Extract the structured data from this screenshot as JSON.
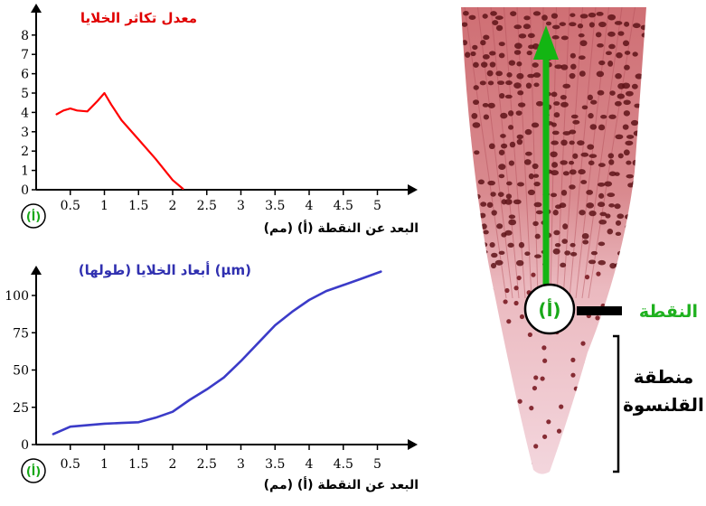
{
  "chart_data": [
    {
      "type": "line",
      "title": "معدل تكاثر الخلايا",
      "xlabel": "البعد عن النقطة (أ) (مم)",
      "origin_label": "(أ)",
      "x_ticks": [
        "0.5",
        "1",
        "1.5",
        "2",
        "2.5",
        "3",
        "3.5",
        "4",
        "4.5",
        "5"
      ],
      "y_ticks": [
        "0",
        "1",
        "2",
        "3",
        "4",
        "5",
        "6",
        "7",
        "8"
      ],
      "xlim": [
        0,
        5.5
      ],
      "ylim": [
        0,
        8.5
      ],
      "grid": false,
      "colors": {
        "line": "#ff0000",
        "title": "#e00000"
      },
      "series": [
        {
          "x": [
            0.3,
            0.4,
            0.5,
            0.6,
            0.75,
            0.9,
            1.0,
            1.1,
            1.25,
            1.5,
            1.75,
            2.0,
            2.15
          ],
          "y": [
            3.9,
            4.1,
            4.2,
            4.1,
            4.05,
            4.6,
            5.0,
            4.4,
            3.6,
            2.6,
            1.6,
            0.5,
            0.05
          ]
        }
      ]
    },
    {
      "type": "line",
      "title": "أبعاد الخلايا (طولها) (µm)",
      "xlabel": "البعد عن النقطة (أ) (مم)",
      "origin_label": "(أ)",
      "x_ticks": [
        "0.5",
        "1",
        "1.5",
        "2",
        "2.5",
        "3",
        "3.5",
        "4",
        "4.5",
        "5"
      ],
      "y_ticks": [
        "0",
        "25",
        "50",
        "75",
        "100"
      ],
      "xlim": [
        0,
        5.5
      ],
      "ylim": [
        0,
        120
      ],
      "grid": false,
      "colors": {
        "line": "#3b3bc8",
        "title": "#3030b0"
      },
      "series": [
        {
          "x": [
            0.25,
            0.5,
            0.75,
            1.0,
            1.25,
            1.5,
            1.75,
            2.0,
            2.25,
            2.5,
            2.75,
            3.0,
            3.25,
            3.5,
            3.75,
            4.0,
            4.25,
            4.5,
            4.75,
            5.05
          ],
          "y": [
            7,
            12,
            13,
            14,
            14.5,
            15,
            18,
            22,
            30,
            37,
            45,
            56,
            68,
            80,
            89,
            97,
            103,
            107,
            111,
            116
          ]
        }
      ]
    }
  ],
  "photo": {
    "point_label": "النقطة",
    "point_marker": "(أ)",
    "zone_label_line1": "منطقة",
    "zone_label_line2": "القلنسوة",
    "colors": {
      "arrow": "#13b513",
      "point_label": "#1fb11f",
      "bracket": "#000000"
    }
  }
}
